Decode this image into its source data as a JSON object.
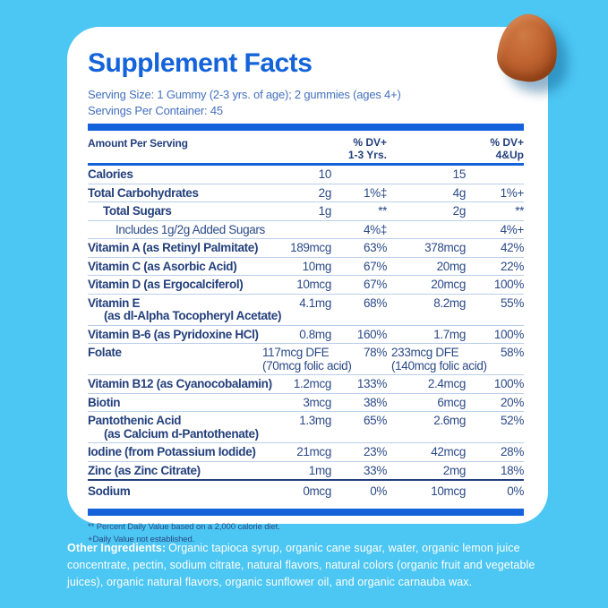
{
  "title": "Supplement Facts",
  "serving": {
    "size_line": "Serving Size: 1 Gummy (2-3 yrs. of age); 2 gummies (ages 4+)",
    "container_line": "Servings Per Container: 45"
  },
  "table": {
    "headers": {
      "amount": "Amount Per Serving",
      "dv1_line1": "% DV+",
      "dv1_line2": "1-3 Yrs.",
      "dv2_line1": "% DV+",
      "dv2_line2": "4&Up"
    },
    "rows": [
      {
        "name": "Calories",
        "a1": "10",
        "dv1": "",
        "a2": "15",
        "dv2": ""
      },
      {
        "name": "Total Carbohydrates",
        "a1": "2g",
        "dv1": "1%‡",
        "a2": "4g",
        "dv2": "1%+"
      },
      {
        "name": "Total Sugars",
        "indent": 1,
        "a1": "1g",
        "dv1": "**",
        "a2": "2g",
        "dv2": "**"
      },
      {
        "name": "Includes 1g/2g Added Sugars",
        "indent": 2,
        "bold": false,
        "a1": "",
        "dv1": "4%‡",
        "a2": "",
        "dv2": "4%+"
      },
      {
        "name": "Vitamin A (as Retinyl Palmitate)",
        "a1": "189mcg",
        "dv1": "63%",
        "a2": "378mcg",
        "dv2": "42%"
      },
      {
        "name": "Vitamin C (as Asorbic Acid)",
        "a1": "10mg",
        "dv1": "67%",
        "a2": "20mg",
        "dv2": "22%"
      },
      {
        "name": "Vitamin D (as Ergocalciferol)",
        "a1": "10mcg",
        "dv1": "67%",
        "a2": "20mcg",
        "dv2": "100%"
      },
      {
        "name": "Vitamin E",
        "name2": "(as dl-Alpha Tocopheryl Acetate)",
        "a1": "4.1mg",
        "dv1": "68%",
        "a2": "8.2mg",
        "dv2": "55%"
      },
      {
        "name": "Vitamin B-6 (as Pyridoxine HCl)",
        "a1": "0.8mg",
        "dv1": "160%",
        "a2": "1.7mg",
        "dv2": "100%"
      },
      {
        "name": "Folate",
        "a1": "117mcg DFE",
        "a1b": "(70mcg folic acid)",
        "dv1": "78%",
        "a2": "233mcg DFE",
        "a2b": "(140mcg folic acid)",
        "dv2": "58%"
      },
      {
        "name": "Vitamin B12 (as Cyanocobalamin)",
        "a1": "1.2mcg",
        "dv1": "133%",
        "a2": "2.4mcg",
        "dv2": "100%"
      },
      {
        "name": "Biotin",
        "a1": "3mcg",
        "dv1": "38%",
        "a2": "6mcg",
        "dv2": "20%"
      },
      {
        "name": "Pantothenic Acid",
        "name2": "(as Calcium d-Pantothenate)",
        "a1": "1.3mg",
        "dv1": "65%",
        "a2": "2.6mg",
        "dv2": "52%"
      },
      {
        "name": "Iodine (from Potassium Iodide)",
        "a1": "21mcg",
        "dv1": "23%",
        "a2": "42mcg",
        "dv2": "28%"
      },
      {
        "name": "Zinc (as Zinc Citrate)",
        "a1": "1mg",
        "dv1": "33%",
        "a2": "2mg",
        "dv2": "18%",
        "classes": "dark-bottom"
      },
      {
        "name": "Sodium",
        "a1": "0mcg",
        "dv1": "0%",
        "a2": "10mcg",
        "dv2": "0%",
        "classes": "no-border tall"
      }
    ]
  },
  "footnotes": [
    "** Percent Daily Value based on a 2,000 calorie diet.",
    "+Daily Value not established."
  ],
  "other_ingredients": {
    "label": "Other Ingredients:",
    "text": "Organic tapioca syrup, organic cane sugar, water, organic lemon juice concentrate, pectin, sodium citrate, natural flavors, natural colors (organic fruit and vegetable juices), organic natural flavors, organic sunflower oil, and organic carnauba wax."
  },
  "colors": {
    "background": "#4cc6f2",
    "accent_blue": "#1463da",
    "navy": "#24407c",
    "value_navy": "#2b4a87",
    "serving_blue": "#4470bd",
    "divider": "#b9cfe8",
    "card": "#ffffff",
    "gummy_orange": "#b65c2b"
  }
}
